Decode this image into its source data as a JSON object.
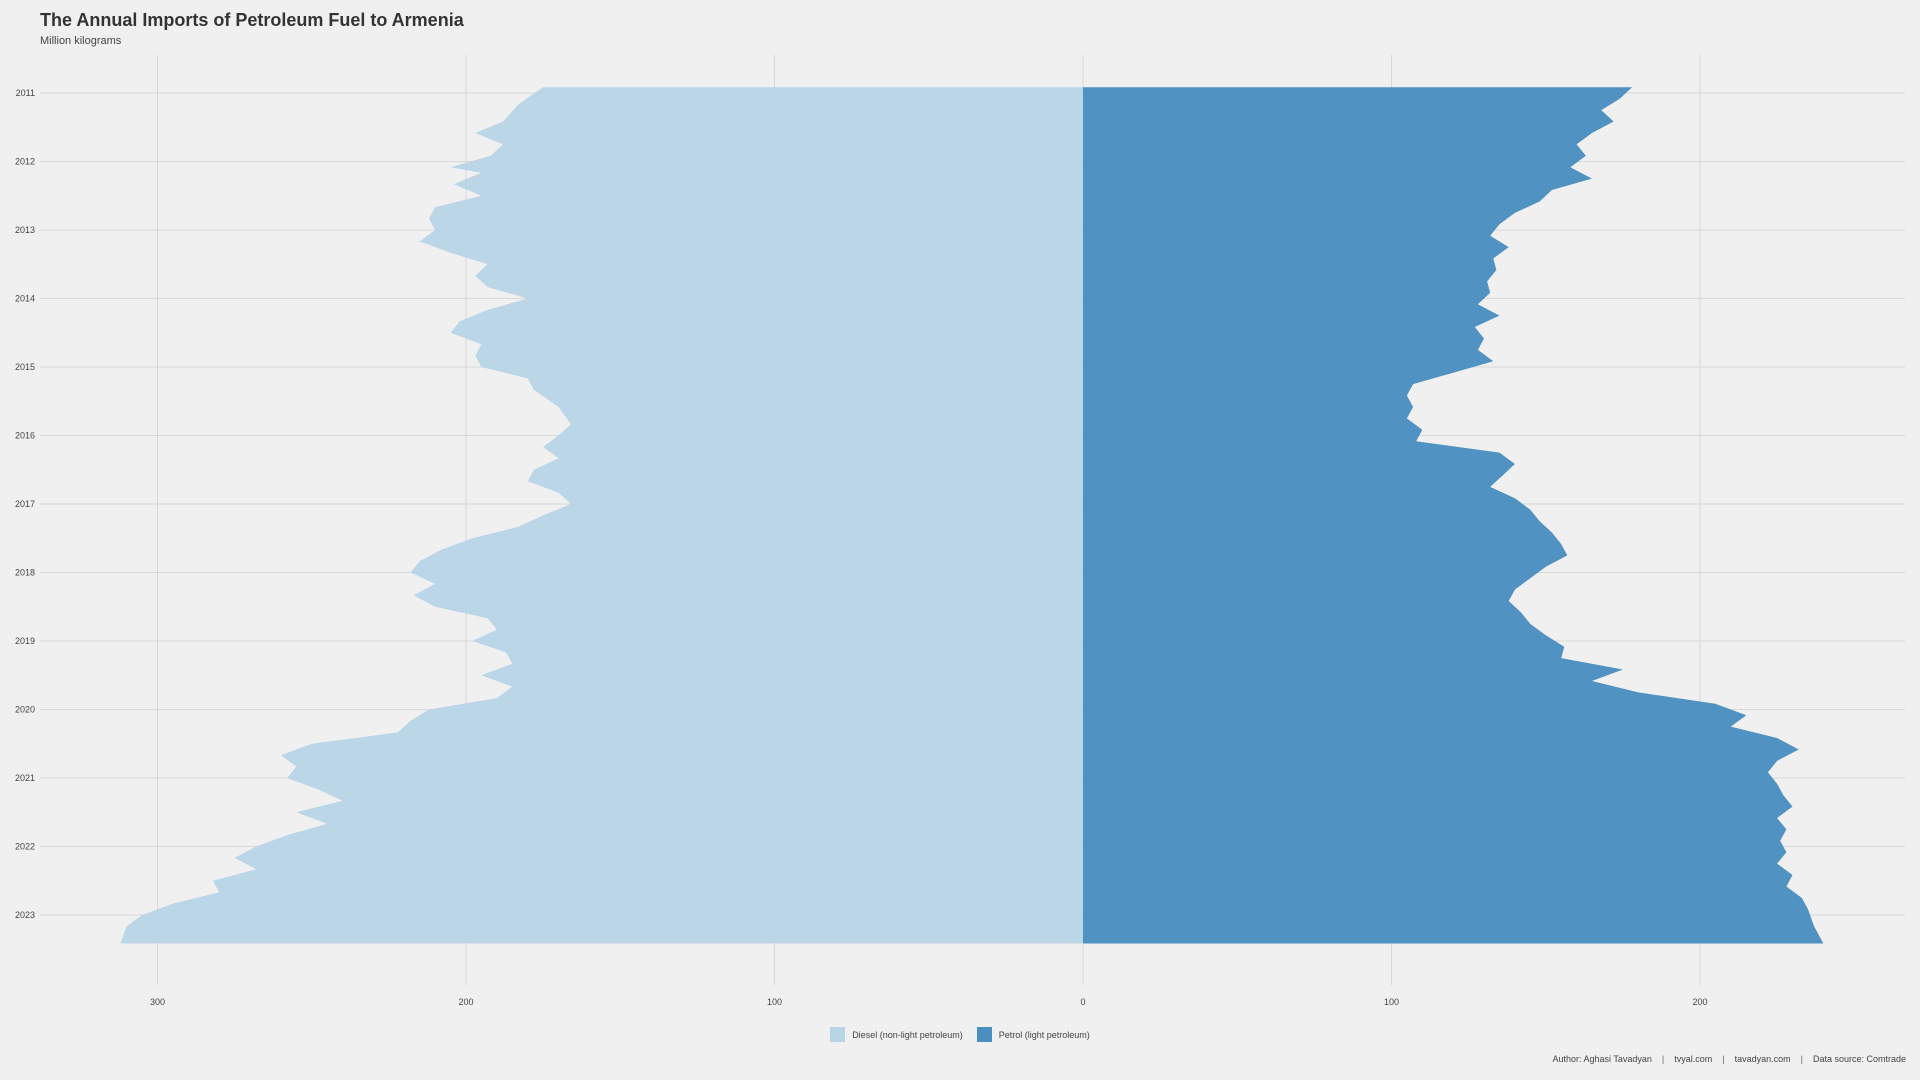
{
  "header": {
    "title": "The Annual Imports of Petroleum Fuel to Armenia",
    "subtitle": "Million kilograms"
  },
  "caption": {
    "author": "Author: Aghasi Tavadyan",
    "site1": "tvyal.com",
    "site2": "tavadyan.com",
    "source": "Data source: Comtrade",
    "separator": "|"
  },
  "chart_data": {
    "type": "area",
    "orientation": "horizontal-diverging",
    "title": "The Annual Imports of Petroleum Fuel to Armenia",
    "subtitle": "Million kilograms",
    "y_axis": {
      "type": "date",
      "range": [
        "2010-12",
        "2023-06"
      ],
      "ticks": [
        "2011",
        "2012",
        "2013",
        "2014",
        "2015",
        "2016",
        "2017",
        "2018",
        "2019",
        "2020",
        "2021",
        "2022",
        "2023"
      ],
      "order": "top-to-bottom"
    },
    "x_axis": {
      "range": [
        -300,
        200
      ],
      "ticks": [
        -300,
        -200,
        -100,
        0,
        100,
        200
      ],
      "tick_labels": [
        "300",
        "200",
        "100",
        "0",
        "100",
        "200"
      ]
    },
    "grid": true,
    "legend_position": "bottom",
    "series": [
      {
        "name": "Diesel (non-light petroleum)",
        "side": "left",
        "color": "#b8d5e6",
        "points": [
          [
            "2010-12",
            175
          ],
          [
            "2011-03",
            183
          ],
          [
            "2011-06",
            188
          ],
          [
            "2011-08",
            197
          ],
          [
            "2011-10",
            188
          ],
          [
            "2011-12",
            192
          ],
          [
            "2012-02",
            205
          ],
          [
            "2012-03",
            195
          ],
          [
            "2012-05",
            204
          ],
          [
            "2012-07",
            195
          ],
          [
            "2012-09",
            210
          ],
          [
            "2012-11",
            212
          ],
          [
            "2013-01",
            210
          ],
          [
            "2013-03",
            215
          ],
          [
            "2013-05",
            205
          ],
          [
            "2013-07",
            193
          ],
          [
            "2013-09",
            197
          ],
          [
            "2013-11",
            193
          ],
          [
            "2014-01",
            180
          ],
          [
            "2014-03",
            193
          ],
          [
            "2014-05",
            202
          ],
          [
            "2014-07",
            205
          ],
          [
            "2014-09",
            195
          ],
          [
            "2014-11",
            197
          ],
          [
            "2015-01",
            195
          ],
          [
            "2015-03",
            180
          ],
          [
            "2015-05",
            178
          ],
          [
            "2015-08",
            170
          ],
          [
            "2015-11",
            166
          ],
          [
            "2016-01",
            170
          ],
          [
            "2016-03",
            175
          ],
          [
            "2016-05",
            170
          ],
          [
            "2016-07",
            178
          ],
          [
            "2016-09",
            180
          ],
          [
            "2016-11",
            170
          ],
          [
            "2017-01",
            166
          ],
          [
            "2017-03",
            175
          ],
          [
            "2017-05",
            183
          ],
          [
            "2017-07",
            198
          ],
          [
            "2017-09",
            208
          ],
          [
            "2017-11",
            215
          ],
          [
            "2018-01",
            218
          ],
          [
            "2018-03",
            210
          ],
          [
            "2018-05",
            217
          ],
          [
            "2018-07",
            210
          ],
          [
            "2018-09",
            193
          ],
          [
            "2018-11",
            190
          ],
          [
            "2019-01",
            198
          ],
          [
            "2019-03",
            187
          ],
          [
            "2019-05",
            185
          ],
          [
            "2019-07",
            195
          ],
          [
            "2019-09",
            185
          ],
          [
            "2019-11",
            190
          ],
          [
            "2020-01",
            212
          ],
          [
            "2020-03",
            218
          ],
          [
            "2020-05",
            222
          ],
          [
            "2020-07",
            250
          ],
          [
            "2020-09",
            260
          ],
          [
            "2020-11",
            255
          ],
          [
            "2021-01",
            258
          ],
          [
            "2021-03",
            248
          ],
          [
            "2021-05",
            240
          ],
          [
            "2021-07",
            255
          ],
          [
            "2021-09",
            245
          ],
          [
            "2021-11",
            258
          ],
          [
            "2022-01",
            268
          ],
          [
            "2022-03",
            275
          ],
          [
            "2022-05",
            268
          ],
          [
            "2022-07",
            282
          ],
          [
            "2022-09",
            280
          ],
          [
            "2022-11",
            295
          ],
          [
            "2023-01",
            305
          ],
          [
            "2023-03",
            310
          ],
          [
            "2023-06",
            312
          ]
        ]
      },
      {
        "name": "Petrol (light petroleum)",
        "side": "right",
        "color": "#4a8fc0",
        "points": [
          [
            "2010-12",
            178
          ],
          [
            "2011-02",
            174
          ],
          [
            "2011-04",
            168
          ],
          [
            "2011-06",
            172
          ],
          [
            "2011-08",
            165
          ],
          [
            "2011-10",
            160
          ],
          [
            "2011-12",
            163
          ],
          [
            "2012-02",
            158
          ],
          [
            "2012-04",
            165
          ],
          [
            "2012-06",
            152
          ],
          [
            "2012-08",
            148
          ],
          [
            "2012-10",
            140
          ],
          [
            "2012-12",
            135
          ],
          [
            "2013-02",
            132
          ],
          [
            "2013-04",
            138
          ],
          [
            "2013-06",
            133
          ],
          [
            "2013-08",
            134
          ],
          [
            "2013-10",
            131
          ],
          [
            "2013-12",
            132
          ],
          [
            "2014-02",
            128
          ],
          [
            "2014-04",
            135
          ],
          [
            "2014-06",
            127
          ],
          [
            "2014-08",
            130
          ],
          [
            "2014-10",
            128
          ],
          [
            "2014-12",
            133
          ],
          [
            "2015-02",
            120
          ],
          [
            "2015-04",
            107
          ],
          [
            "2015-06",
            105
          ],
          [
            "2015-08",
            107
          ],
          [
            "2015-10",
            105
          ],
          [
            "2015-12",
            110
          ],
          [
            "2016-02",
            108
          ],
          [
            "2016-04",
            135
          ],
          [
            "2016-06",
            140
          ],
          [
            "2016-08",
            136
          ],
          [
            "2016-10",
            132
          ],
          [
            "2016-12",
            140
          ],
          [
            "2017-02",
            145
          ],
          [
            "2017-04",
            148
          ],
          [
            "2017-06",
            152
          ],
          [
            "2017-08",
            155
          ],
          [
            "2017-10",
            157
          ],
          [
            "2017-12",
            150
          ],
          [
            "2018-02",
            145
          ],
          [
            "2018-04",
            140
          ],
          [
            "2018-06",
            138
          ],
          [
            "2018-08",
            142
          ],
          [
            "2018-10",
            145
          ],
          [
            "2018-12",
            150
          ],
          [
            "2019-02",
            156
          ],
          [
            "2019-04",
            155
          ],
          [
            "2019-06",
            175
          ],
          [
            "2019-08",
            165
          ],
          [
            "2019-10",
            180
          ],
          [
            "2019-12",
            205
          ],
          [
            "2020-02",
            215
          ],
          [
            "2020-04",
            210
          ],
          [
            "2020-06",
            225
          ],
          [
            "2020-08",
            232
          ],
          [
            "2020-10",
            225
          ],
          [
            "2020-12",
            222
          ],
          [
            "2021-02",
            225
          ],
          [
            "2021-04",
            227
          ],
          [
            "2021-06",
            230
          ],
          [
            "2021-08",
            225
          ],
          [
            "2021-10",
            228
          ],
          [
            "2021-12",
            226
          ],
          [
            "2022-02",
            228
          ],
          [
            "2022-04",
            225
          ],
          [
            "2022-06",
            230
          ],
          [
            "2022-08",
            228
          ],
          [
            "2022-10",
            233
          ],
          [
            "2022-12",
            235
          ],
          [
            "2023-03",
            237
          ],
          [
            "2023-06",
            240
          ]
        ]
      }
    ]
  }
}
